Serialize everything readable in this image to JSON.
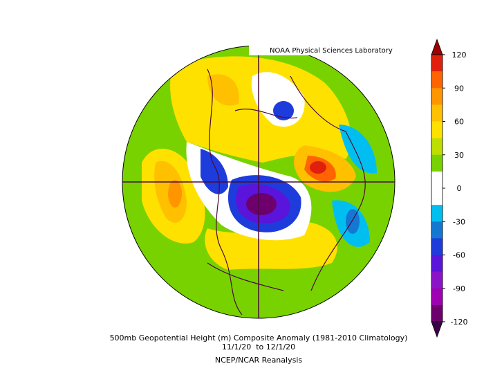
{
  "credit": "NOAA Physical Sciences Laboratory",
  "caption": [
    "500mb Geopotential Height (m) Composite Anomaly (1981-2010 Climatology)",
    "11/1/20  to 12/1/20",
    "NCEP/NCAR Reanalysis"
  ],
  "colorbar": {
    "ticks": [
      120,
      90,
      60,
      30,
      0,
      -30,
      -60,
      -90,
      -120
    ],
    "colors": [
      "#e0200c",
      "#ff6400",
      "#ff9600",
      "#ffc000",
      "#ffe100",
      "#bede00",
      "#78d200",
      "#ffffff",
      "#ffffff",
      "#00bff0",
      "#1478d2",
      "#1e3cdc",
      "#5a14dc",
      "#8c14c8",
      "#a000b4",
      "#6e006e"
    ],
    "over_color": "#a00000",
    "under_color": "#3c0046"
  }
}
